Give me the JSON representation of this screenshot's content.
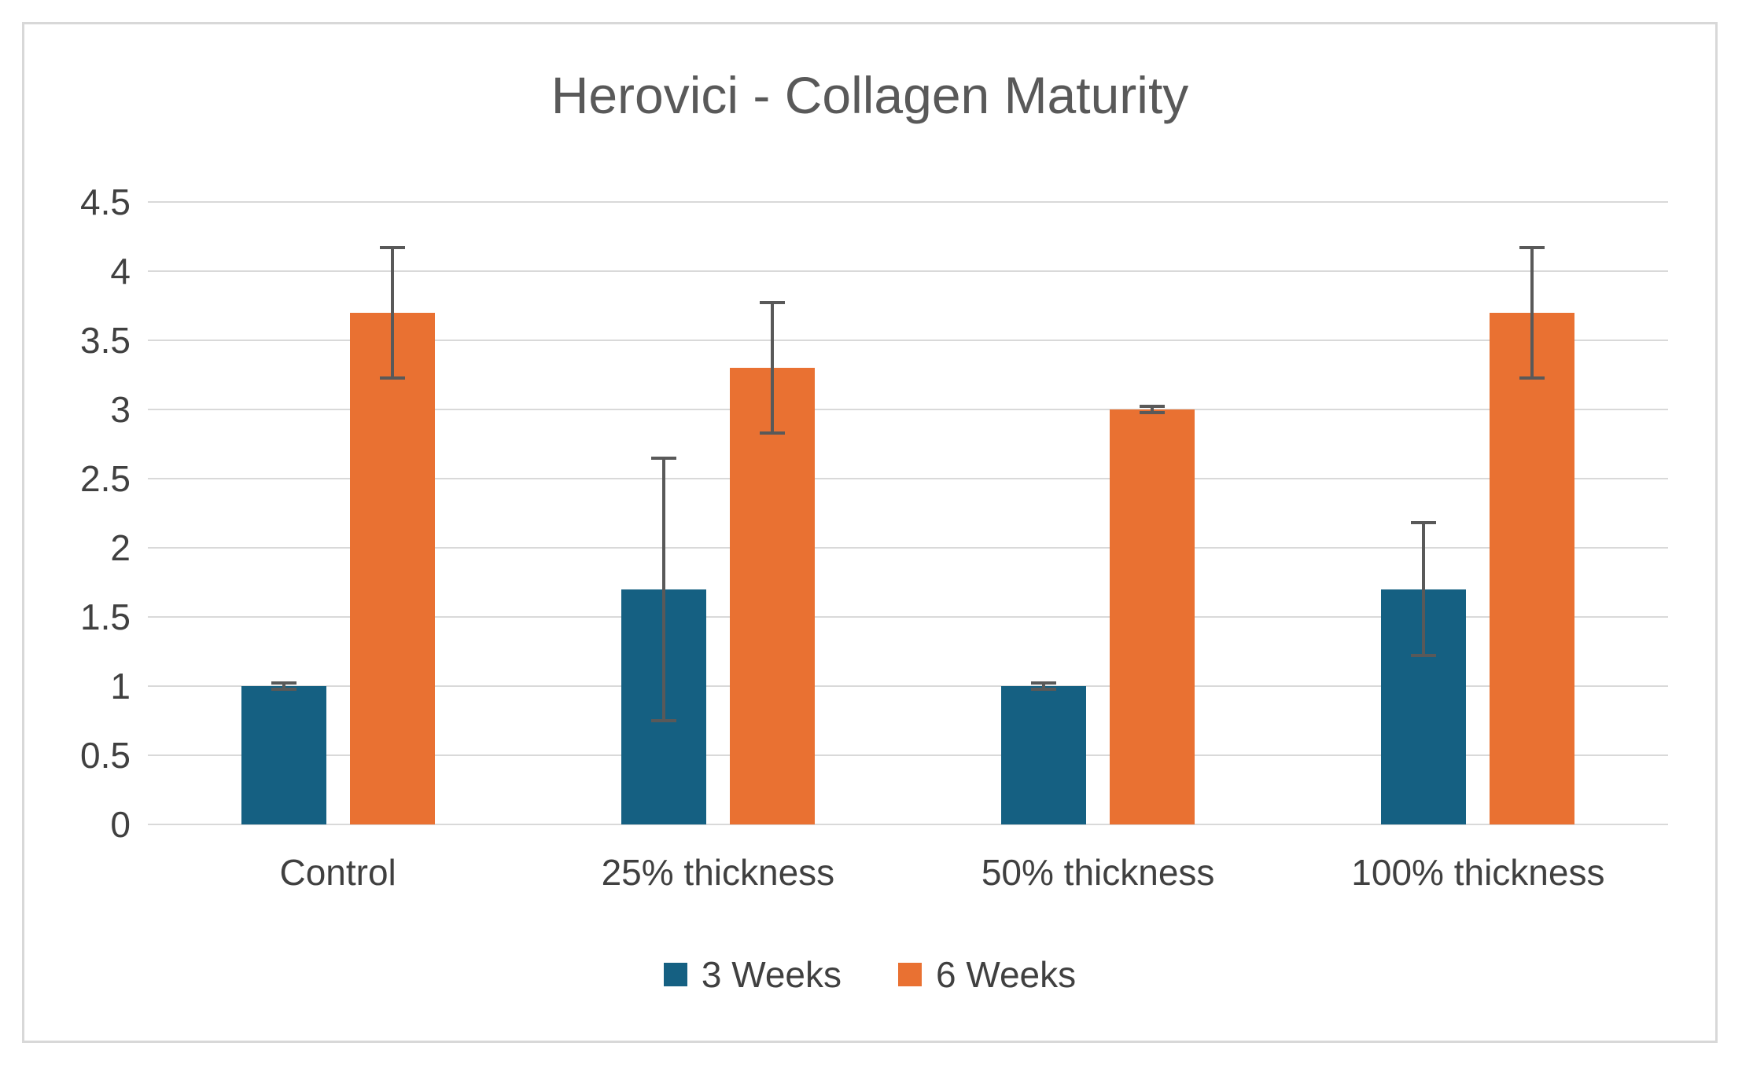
{
  "chart_data": {
    "type": "bar",
    "title": "Herovici - Collagen Maturity",
    "categories": [
      "Control",
      "25% thickness",
      "50% thickness",
      "100% thickness"
    ],
    "series": [
      {
        "name": "3 Weeks",
        "color": "#156082",
        "values": [
          1.0,
          1.7,
          1.0,
          1.7
        ],
        "error_bars": [
          0.02,
          0.95,
          0.02,
          0.48
        ]
      },
      {
        "name": "6 Weeks",
        "color": "#E97132",
        "values": [
          3.7,
          3.3,
          3.0,
          3.7
        ],
        "error_bars": [
          0.47,
          0.47,
          0.02,
          0.47
        ]
      }
    ],
    "xlabel": "",
    "ylabel": "",
    "ylim": [
      0,
      4.5
    ],
    "ytick_values": [
      0,
      0.5,
      1,
      1.5,
      2,
      2.5,
      3,
      3.5,
      4,
      4.5
    ],
    "ytick_labels": [
      "0",
      "0.5",
      "1",
      "1.5",
      "2",
      "2.5",
      "3",
      "3.5",
      "4",
      "4.5"
    ],
    "grid": true,
    "legend_position": "bottom",
    "colors": {
      "gridline": "#d9d9d9",
      "axis_text": "#404040",
      "title_text": "#595959",
      "error_bar": "#595959",
      "background": "#ffffff",
      "frame_border": "#d8d8d8"
    }
  }
}
